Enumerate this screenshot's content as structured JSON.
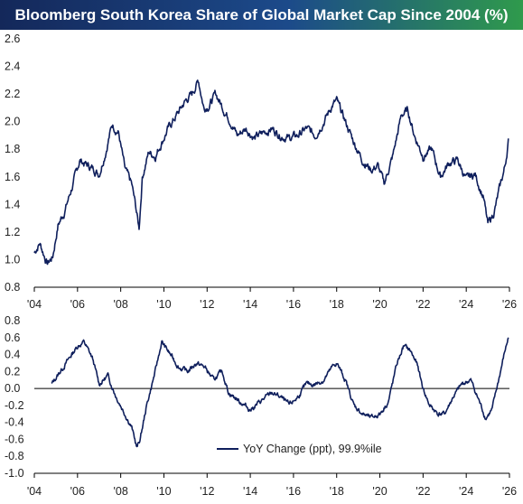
{
  "title": "Bloomberg South Korea Share of Global Market Cap Since 2004 (%)",
  "colors": {
    "series": "#0f1f5c",
    "title_start": "#14285a",
    "title_end": "#2f9a4c"
  },
  "chart_data": [
    {
      "type": "line",
      "name": "share",
      "xlim": [
        2004,
        2026
      ],
      "ylim": [
        0.8,
        2.6
      ],
      "x_ticks": [
        "'04",
        "'06",
        "'08",
        "'10",
        "'12",
        "'14",
        "'16",
        "'18",
        "'20",
        "'22",
        "'24",
        "'26"
      ],
      "y_ticks": [
        "0.8",
        "1.0",
        "1.2",
        "1.4",
        "1.6",
        "1.8",
        "2.0",
        "2.2",
        "2.4",
        "2.6"
      ],
      "grid": false,
      "series": [
        {
          "x": [
            2004.0,
            2004.25,
            2004.6,
            2004.85,
            2005.1,
            2005.4,
            2005.8,
            2006.1,
            2006.5,
            2006.8,
            2007.0,
            2007.3,
            2007.6,
            2007.9,
            2008.2,
            2008.5,
            2008.7,
            2008.85,
            2009.0,
            2009.3,
            2009.6,
            2009.9,
            2010.2,
            2010.6,
            2011.0,
            2011.3,
            2011.6,
            2011.85,
            2012.1,
            2012.4,
            2012.8,
            2013.1,
            2013.4,
            2013.8,
            2014.2,
            2014.6,
            2015.0,
            2015.4,
            2015.8,
            2016.2,
            2016.6,
            2017.0,
            2017.4,
            2017.8,
            2018.0,
            2018.4,
            2018.8,
            2019.2,
            2019.6,
            2019.9,
            2020.2,
            2020.6,
            2021.0,
            2021.3,
            2021.6,
            2022.0,
            2022.4,
            2022.8,
            2023.2,
            2023.6,
            2024.0,
            2024.4,
            2024.8,
            2025.0,
            2025.3,
            2025.6,
            2025.8,
            2025.95
          ],
          "values": [
            1.05,
            1.12,
            0.97,
            1.02,
            1.25,
            1.35,
            1.55,
            1.72,
            1.68,
            1.65,
            1.62,
            1.78,
            1.98,
            1.92,
            1.65,
            1.55,
            1.38,
            1.22,
            1.6,
            1.78,
            1.75,
            1.85,
            1.95,
            2.05,
            2.15,
            2.2,
            2.3,
            2.1,
            2.12,
            2.2,
            2.08,
            2.0,
            1.9,
            1.95,
            1.88,
            1.92,
            1.95,
            1.9,
            1.88,
            1.9,
            1.95,
            1.9,
            2.0,
            2.12,
            2.15,
            2.0,
            1.85,
            1.72,
            1.65,
            1.68,
            1.55,
            1.75,
            2.05,
            2.08,
            1.9,
            1.75,
            1.8,
            1.6,
            1.7,
            1.72,
            1.58,
            1.62,
            1.45,
            1.25,
            1.35,
            1.55,
            1.68,
            1.86
          ]
        }
      ]
    },
    {
      "type": "line",
      "name": "yoy",
      "xlim": [
        2004,
        2026
      ],
      "ylim": [
        -1.0,
        0.8
      ],
      "x_ticks": [
        "'04",
        "'06",
        "'08",
        "'10",
        "'12",
        "'14",
        "'16",
        "'18",
        "'20",
        "'22",
        "'24",
        "'26"
      ],
      "y_ticks": [
        "-1.0",
        "-0.8",
        "-0.6",
        "-0.4",
        "-0.2",
        "0.0",
        "0.2",
        "0.4",
        "0.6",
        "0.8"
      ],
      "grid": false,
      "legend": "bottom-right",
      "series": [
        {
          "name": "YoY Change (ppt), 99.9%ile",
          "x": [
            2004.8,
            2005.2,
            2005.6,
            2006.0,
            2006.3,
            2006.7,
            2007.0,
            2007.4,
            2007.8,
            2008.2,
            2008.5,
            2008.75,
            2008.9,
            2009.2,
            2009.6,
            2009.9,
            2010.3,
            2010.7,
            2011.1,
            2011.5,
            2011.9,
            2012.3,
            2012.7,
            2013.0,
            2013.5,
            2014.0,
            2014.5,
            2015.0,
            2015.4,
            2015.8,
            2016.2,
            2016.6,
            2017.0,
            2017.4,
            2017.8,
            2018.0,
            2018.4,
            2018.8,
            2019.2,
            2019.6,
            2020.0,
            2020.4,
            2020.8,
            2021.1,
            2021.4,
            2021.7,
            2022.0,
            2022.3,
            2022.7,
            2023.0,
            2023.4,
            2023.8,
            2024.2,
            2024.6,
            2024.9,
            2025.2,
            2025.5,
            2025.8,
            2025.95
          ],
          "values": [
            0.05,
            0.2,
            0.35,
            0.5,
            0.55,
            0.35,
            0.05,
            0.15,
            -0.1,
            -0.3,
            -0.45,
            -0.7,
            -0.6,
            -0.2,
            0.2,
            0.55,
            0.4,
            0.25,
            0.2,
            0.3,
            0.25,
            0.1,
            0.2,
            -0.05,
            -0.15,
            -0.25,
            -0.15,
            -0.05,
            -0.1,
            -0.2,
            -0.1,
            0.05,
            0.05,
            0.1,
            0.25,
            0.3,
            0.1,
            -0.2,
            -0.3,
            -0.35,
            -0.3,
            -0.15,
            0.3,
            0.5,
            0.45,
            0.3,
            0.0,
            -0.2,
            -0.3,
            -0.3,
            -0.1,
            0.05,
            0.1,
            -0.15,
            -0.35,
            -0.25,
            0.1,
            0.45,
            0.6
          ]
        }
      ]
    }
  ]
}
